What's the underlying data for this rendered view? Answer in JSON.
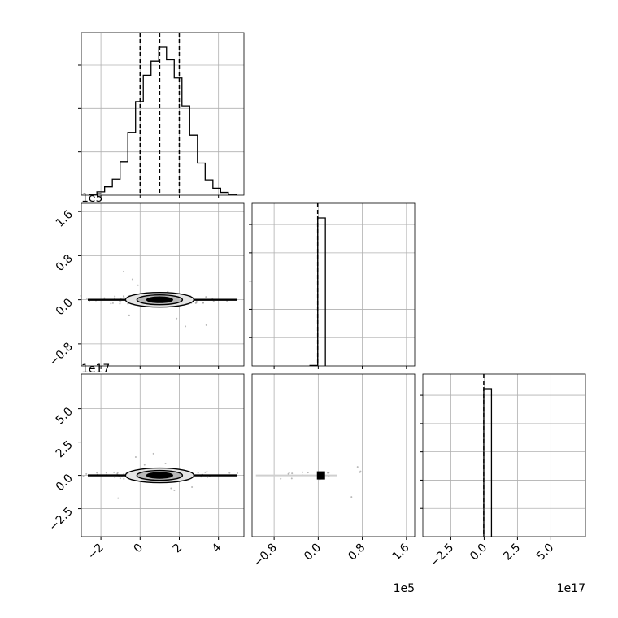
{
  "chart_data": {
    "type": "corner",
    "panels": [
      {
        "id": "hist-p1",
        "type": "histogram",
        "x_range": [
          -3.0,
          5.3
        ],
        "xticks": [
          -2,
          0,
          2,
          4
        ],
        "xtick_labels_visible": false,
        "yticks_count": 3,
        "counts": [
          0.5,
          2.4,
          6.0,
          11.5,
          24.0,
          45.0,
          67.0,
          86.0,
          96.0,
          106.0,
          97.0,
          84.0,
          64.0,
          43.0,
          23.0,
          11.0,
          5.0,
          2.0,
          0.6
        ],
        "quantiles": [
          0.0,
          1.0,
          2.0
        ],
        "grid": true
      },
      {
        "id": "scatter-p2-p1",
        "type": "density_contour",
        "x_range": [
          -3.0,
          5.3
        ],
        "y_range": [
          -120000,
          175000
        ],
        "xticks": [
          -2,
          0,
          2,
          4
        ],
        "xtick_labels_visible": false,
        "yticks": [
          -80000,
          0,
          80000,
          160000
        ],
        "ytick_labels": [
          "−0.8",
          "0.0",
          "0.8",
          "1.6"
        ],
        "y_offset_label": "1e5",
        "core_center": [
          1.0,
          0
        ],
        "grid": true
      },
      {
        "id": "hist-p2",
        "type": "histogram",
        "x_range": [
          -120000,
          175000
        ],
        "xticks": [
          -80000,
          0,
          80000,
          160000
        ],
        "xtick_labels_visible": false,
        "yticks_count": 5,
        "bins": [
          [
            -15000,
            -1000,
            0.3
          ],
          [
            -1000,
            13000,
            100
          ]
        ],
        "quantiles": [
          -1000
        ],
        "grid": true
      },
      {
        "id": "scatter-p3-p1",
        "type": "density_contour",
        "x_range": [
          -3.0,
          5.3
        ],
        "y_range": [
          -4.6e+17,
          7.6e+17
        ],
        "xticks": [
          -2,
          0,
          2,
          4
        ],
        "xtick_labels": [
          "−2",
          "0",
          "2",
          "4"
        ],
        "yticks": [
          -2.5e+17,
          0,
          2.5e+17,
          5e+17
        ],
        "ytick_labels": [
          "−2.5",
          "0.0",
          "2.5",
          "5.0"
        ],
        "y_offset_label": "1e17",
        "core_center": [
          1.0,
          0
        ],
        "grid": true
      },
      {
        "id": "scatter-p3-p2",
        "type": "density_contour",
        "x_range": [
          -120000,
          175000
        ],
        "y_range": [
          -4.6e+17,
          7.6e+17
        ],
        "xticks": [
          -80000,
          0,
          80000,
          160000
        ],
        "xtick_labels": [
          "−0.8",
          "0.0",
          "0.8",
          "1.6"
        ],
        "x_offset_label": "1e5",
        "core_center": [
          5000,
          0
        ],
        "grid": true
      },
      {
        "id": "hist-p3",
        "type": "histogram",
        "x_range": [
          -4.6e+17,
          7.6e+17
        ],
        "xticks": [
          -2.5e+17,
          0,
          2.5e+17,
          5e+17
        ],
        "xtick_labels": [
          "−2.5",
          "0.0",
          "2.5",
          "5.0"
        ],
        "x_offset_label": "1e17",
        "yticks_count": 5,
        "bins": [
          [
            -3000000000000000.0,
            5.5e+16,
            100
          ]
        ],
        "quantiles": [
          -3000000000000000.0
        ],
        "grid": true
      }
    ]
  }
}
